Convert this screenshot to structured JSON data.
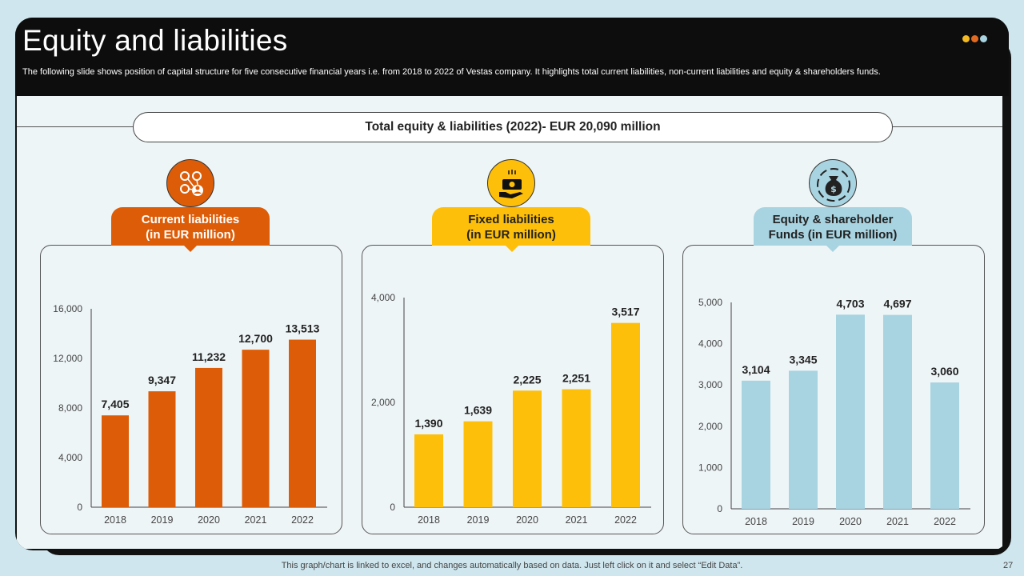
{
  "header": {
    "title": "Equity and liabilities",
    "subtitle": "The following slide shows position of capital structure for five  consecutive financial years i.e. from 2018 to 2022 of Vestas company. It highlights total current liabilities, non-current liabilities and equity & shareholders funds."
  },
  "banner": {
    "text": "Total equity & liabilities (2022)- EUR 20,090 million"
  },
  "colors": {
    "orange": "#dd5c07",
    "yellow": "#fdbf0a",
    "blue": "#a8d3e1",
    "dot1": "#f4b923",
    "dot2": "#e06a22",
    "dot3": "#a8d3e1"
  },
  "panels": [
    {
      "title_line1": "Current liabilities",
      "title_line2": "(in EUR million)",
      "icon": "money-network-icon"
    },
    {
      "title_line1": "Fixed liabilities",
      "title_line2": "(in EUR million)",
      "icon": "cash-hand-icon"
    },
    {
      "title_line1": "Equity & shareholder",
      "title_line2": "Funds (in EUR million)",
      "icon": "money-bag-cycle-icon"
    }
  ],
  "chart_data": [
    {
      "type": "bar",
      "categories": [
        "2018",
        "2019",
        "2020",
        "2021",
        "2022"
      ],
      "values": [
        7405,
        9347,
        11232,
        12700,
        13513
      ],
      "labels": [
        "7,405",
        "9,347",
        "11,232",
        "12,700",
        "13,513"
      ],
      "ylim": [
        0,
        16000
      ],
      "yticks": [
        0,
        4000,
        8000,
        12000,
        16000
      ],
      "ytick_labels": [
        "0",
        "4,000",
        "8,000",
        "12,000",
        "16,000"
      ],
      "color": "#dd5c07",
      "grid": false
    },
    {
      "type": "bar",
      "categories": [
        "2018",
        "2019",
        "2020",
        "2021",
        "2022"
      ],
      "values": [
        1390,
        1639,
        2225,
        2251,
        3517
      ],
      "labels": [
        "1,390",
        "1,639",
        "2,225",
        "2,251",
        "3,517"
      ],
      "ylim": [
        0,
        4000
      ],
      "yticks": [
        0,
        2000,
        4000
      ],
      "ytick_labels": [
        "0",
        "2,000",
        "4,000"
      ],
      "color": "#fdbf0a",
      "grid": false
    },
    {
      "type": "bar",
      "categories": [
        "2018",
        "2019",
        "2020",
        "2021",
        "2022"
      ],
      "values": [
        3104,
        3345,
        4703,
        4697,
        3060
      ],
      "labels": [
        "3,104",
        "3,345",
        "4,703",
        "4,697",
        "3,060"
      ],
      "ylim": [
        0,
        5000
      ],
      "yticks": [
        0,
        1000,
        2000,
        3000,
        4000,
        5000
      ],
      "ytick_labels": [
        "0",
        "1,000",
        "2,000",
        "3,000",
        "4,000",
        "5,000"
      ],
      "color": "#a8d3e1",
      "grid": false
    }
  ],
  "footer": {
    "note": "This graph/chart is linked to excel,  and changes automatically based on data. Just left click on it and select “Edit Data”.",
    "page_number": "27"
  }
}
